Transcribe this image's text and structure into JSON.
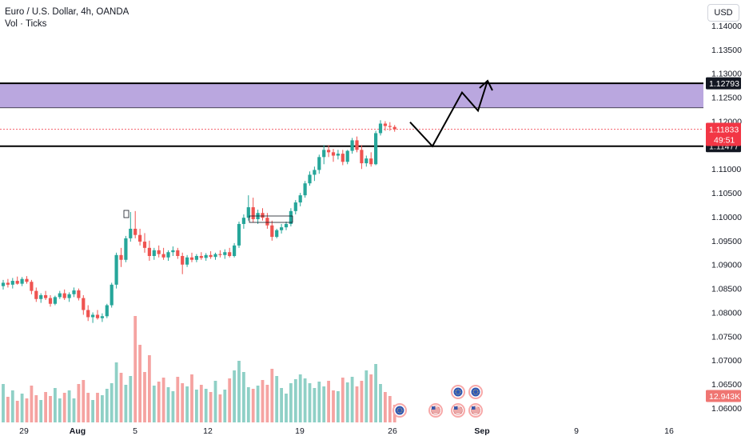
{
  "header": {
    "symbol_line": "Euro / U.S. Dollar, 4h, OANDA",
    "indicator_line": "Vol · Ticks",
    "currency_button": "USD"
  },
  "price_axis": {
    "ticks": [
      "1.14000",
      "1.13500",
      "1.13000",
      "1.12500",
      "1.12000",
      "1.11500",
      "1.11000",
      "1.10500",
      "1.10000",
      "1.09500",
      "1.09000",
      "1.08500",
      "1.08000",
      "1.07500",
      "1.07000",
      "1.06500",
      "1.06000"
    ],
    "upper_level_label": "1.12793",
    "current_price_label": "1.11833",
    "countdown_label": "49:51",
    "lower_level_label": "1.11477",
    "volume_label": "12.943K"
  },
  "time_axis": {
    "labels": [
      "29",
      "Aug",
      "5",
      "12",
      "19",
      "26",
      "Sep",
      "9",
      "16"
    ]
  },
  "colors": {
    "up": "#26a69a",
    "down": "#ef5350",
    "up_volume": "#8fd0c6",
    "down_volume": "#f5a3a1",
    "zone": "#b39ddb",
    "level_line": "#000000",
    "current_price": "#f23645",
    "projection": "#000000"
  },
  "annotations": {
    "resistance_zone": [
      1.1228,
      1.12793
    ],
    "support_level": 1.11477,
    "current_price": 1.11833,
    "projected_path": [
      [
        1.1198,
        "Aug 27"
      ],
      [
        1.11477,
        "Aug 29"
      ],
      [
        1.126,
        "Aug 31"
      ],
      [
        1.122,
        "Sep 1"
      ],
      [
        1.1285,
        "Sep 1"
      ]
    ]
  },
  "event_icons": [
    "eu-flag-icon",
    "us-flag-icon",
    "eu-flag-icon",
    "us-flag-icon",
    "eu-flag-icon",
    "us-flag-icon"
  ],
  "chart_data": {
    "type": "candlestick",
    "symbol": "EURUSD",
    "timeframe": "4h",
    "x_range": [
      "Jul 26",
      "Sep 17"
    ],
    "ylim": [
      1.0585,
      1.1415
    ],
    "grid": false,
    "candles": [
      [
        1.0855,
        1.0868,
        1.0848,
        1.0862
      ],
      [
        1.0862,
        1.087,
        1.0852,
        1.0858
      ],
      [
        1.0858,
        1.0872,
        1.085,
        1.0866
      ],
      [
        1.0866,
        1.0875,
        1.0858,
        1.086
      ],
      [
        1.086,
        1.0874,
        1.0855,
        1.087
      ],
      [
        1.087,
        1.0876,
        1.086,
        1.0864
      ],
      [
        1.0864,
        1.0868,
        1.0838,
        1.0845
      ],
      [
        1.0845,
        1.0852,
        1.0822,
        1.0828
      ],
      [
        1.0828,
        1.084,
        1.082,
        1.0836
      ],
      [
        1.0836,
        1.0845,
        1.0826,
        1.083
      ],
      [
        1.083,
        1.0836,
        1.0812,
        1.0818
      ],
      [
        1.0818,
        1.0835,
        1.0815,
        1.0832
      ],
      [
        1.0832,
        1.0845,
        1.0828,
        1.084
      ],
      [
        1.084,
        1.0848,
        1.0826,
        1.083
      ],
      [
        1.083,
        1.0842,
        1.0822,
        1.0838
      ],
      [
        1.0838,
        1.0852,
        1.0832,
        1.0846
      ],
      [
        1.0846,
        1.085,
        1.0825,
        1.083
      ],
      [
        1.083,
        1.0836,
        1.0795,
        1.0805
      ],
      [
        1.0805,
        1.0815,
        1.0782,
        1.079
      ],
      [
        1.079,
        1.08,
        1.0778,
        1.0795
      ],
      [
        1.0795,
        1.0805,
        1.0785,
        1.0788
      ],
      [
        1.0788,
        1.0798,
        1.078,
        1.0792
      ],
      [
        1.0792,
        1.0818,
        1.0788,
        1.0815
      ],
      [
        1.0815,
        1.0862,
        1.081,
        1.0858
      ],
      [
        1.0858,
        1.0925,
        1.085,
        1.092
      ],
      [
        1.092,
        1.0935,
        1.0895,
        1.091
      ],
      [
        1.091,
        1.096,
        1.0905,
        1.0955
      ],
      [
        1.0955,
        1.101,
        1.0948,
        1.0975
      ],
      [
        1.0975,
        1.1012,
        1.0955,
        1.0962
      ],
      [
        1.0962,
        1.0975,
        1.094,
        1.0948
      ],
      [
        1.0948,
        1.0966,
        1.0925,
        1.0935
      ],
      [
        1.0935,
        1.095,
        1.0908,
        1.0918
      ],
      [
        1.0918,
        1.0935,
        1.091,
        1.093
      ],
      [
        1.093,
        1.094,
        1.0915,
        1.0922
      ],
      [
        1.0922,
        1.0935,
        1.091,
        1.0915
      ],
      [
        1.0915,
        1.093,
        1.0908,
        1.0926
      ],
      [
        1.0926,
        1.0938,
        1.0918,
        1.093
      ],
      [
        1.093,
        1.0935,
        1.0912,
        1.0918
      ],
      [
        1.0918,
        1.0925,
        1.088,
        1.09
      ],
      [
        1.09,
        1.092,
        1.0895,
        1.0915
      ],
      [
        1.0915,
        1.0925,
        1.0905,
        1.091
      ],
      [
        1.091,
        1.0922,
        1.0905,
        1.0918
      ],
      [
        1.0918,
        1.0926,
        1.091,
        1.0914
      ],
      [
        1.0914,
        1.0924,
        1.0908,
        1.092
      ],
      [
        1.092,
        1.0928,
        1.0912,
        1.0916
      ],
      [
        1.0916,
        1.0925,
        1.091,
        1.0922
      ],
      [
        1.0922,
        1.093,
        1.0915,
        1.092
      ],
      [
        1.092,
        1.0932,
        1.0912,
        1.0926
      ],
      [
        1.0926,
        1.0935,
        1.0915,
        1.0918
      ],
      [
        1.0918,
        1.0945,
        1.0915,
        1.094
      ],
      [
        1.094,
        1.099,
        1.0935,
        1.0985
      ],
      [
        1.0985,
        1.1005,
        1.0975,
        1.0998
      ],
      [
        1.0998,
        1.1045,
        1.0992,
        1.102
      ],
      [
        1.102,
        1.104,
        1.0988,
        1.0995
      ],
      [
        1.0995,
        1.1015,
        1.0985,
        1.1008
      ],
      [
        1.1008,
        1.1018,
        1.0992,
        1.0998
      ],
      [
        1.0998,
        1.1008,
        1.0975,
        1.0982
      ],
      [
        1.0982,
        1.0992,
        1.095,
        1.0958
      ],
      [
        1.0958,
        1.0975,
        1.0955,
        1.0972
      ],
      [
        1.0972,
        1.0985,
        1.0965,
        1.0978
      ],
      [
        1.0978,
        1.099,
        1.0972,
        1.0985
      ],
      [
        1.0985,
        1.1018,
        1.098,
        1.1012
      ],
      [
        1.1012,
        1.1035,
        1.1005,
        1.103
      ],
      [
        1.103,
        1.105,
        1.1022,
        1.1045
      ],
      [
        1.1045,
        1.1075,
        1.104,
        1.107
      ],
      [
        1.107,
        1.1095,
        1.1065,
        1.1088
      ],
      [
        1.1088,
        1.1105,
        1.1075,
        1.1098
      ],
      [
        1.1098,
        1.113,
        1.109,
        1.1125
      ],
      [
        1.1125,
        1.115,
        1.111,
        1.114
      ],
      [
        1.114,
        1.115,
        1.1125,
        1.1135
      ],
      [
        1.1135,
        1.1142,
        1.1115,
        1.1128
      ],
      [
        1.1128,
        1.114,
        1.112,
        1.1132
      ],
      [
        1.1132,
        1.114,
        1.1108,
        1.1115
      ],
      [
        1.1115,
        1.114,
        1.111,
        1.1138
      ],
      [
        1.1138,
        1.1165,
        1.1132,
        1.116
      ],
      [
        1.116,
        1.1168,
        1.1135,
        1.114
      ],
      [
        1.114,
        1.115,
        1.11,
        1.1112
      ],
      [
        1.1112,
        1.1128,
        1.1105,
        1.1122
      ],
      [
        1.1122,
        1.1135,
        1.1105,
        1.111
      ],
      [
        1.111,
        1.118,
        1.1108,
        1.1175
      ],
      [
        1.1175,
        1.1202,
        1.117,
        1.1195
      ],
      [
        1.1195,
        1.12,
        1.118,
        1.119
      ],
      [
        1.119,
        1.1198,
        1.118,
        1.1188
      ],
      [
        1.1188,
        1.1192,
        1.1178,
        1.1183
      ]
    ],
    "volume": [
      48,
      32,
      40,
      27,
      36,
      30,
      46,
      34,
      28,
      38,
      33,
      43,
      30,
      37,
      40,
      30,
      48,
      53,
      37,
      28,
      37,
      34,
      42,
      49,
      75,
      62,
      47,
      58,
      133,
      97,
      63,
      84,
      46,
      51,
      56,
      44,
      39,
      57,
      49,
      45,
      60,
      41,
      47,
      42,
      38,
      52,
      35,
      41,
      55,
      65,
      77,
      63,
      44,
      42,
      46,
      53,
      47,
      67,
      58,
      43,
      36,
      49,
      54,
      60,
      55,
      49,
      43,
      51,
      45,
      52,
      40,
      39,
      56,
      50,
      57,
      45,
      52,
      65,
      60,
      73,
      48,
      38,
      33,
      22
    ]
  }
}
